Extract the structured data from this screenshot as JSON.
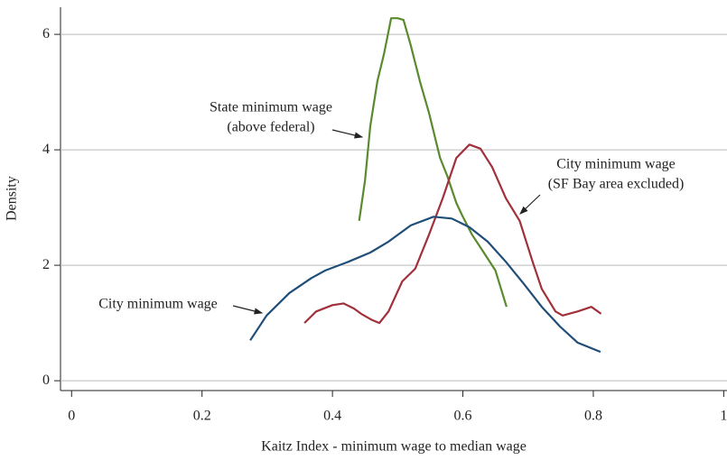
{
  "chart_data": {
    "type": "line",
    "x_label": "Kaitz Index - minimum wage to median wage",
    "y_label": "Density",
    "xlim": [
      -0.017,
      1.005
    ],
    "xticks": [
      0,
      0.2,
      0.4,
      0.6,
      0.8,
      1
    ],
    "ylim": [
      -0.17,
      6.47
    ],
    "yticks": [
      0,
      2,
      4,
      6
    ],
    "grid": true,
    "series": [
      {
        "label": [
          "State minimum wage",
          "(above federal)"
        ],
        "color": "#5a8a2e",
        "x": [
          0.441,
          0.45,
          0.458,
          0.469,
          0.479,
          0.49,
          0.5,
          0.509,
          0.52,
          0.534,
          0.548,
          0.565,
          0.576,
          0.59,
          0.6,
          0.614,
          0.632,
          0.65,
          0.667
        ],
        "values": [
          2.77,
          3.47,
          4.41,
          5.19,
          5.66,
          6.28,
          6.28,
          6.25,
          5.81,
          5.19,
          4.64,
          3.86,
          3.55,
          3.08,
          2.84,
          2.53,
          2.22,
          1.91,
          1.28
        ]
      },
      {
        "label": [
          "City minimum wage",
          "(SF Bay area excluded)"
        ],
        "color": "#a0303a",
        "x": [
          0.357,
          0.375,
          0.4,
          0.417,
          0.433,
          0.444,
          0.461,
          0.472,
          0.486,
          0.507,
          0.527,
          0.548,
          0.569,
          0.59,
          0.61,
          0.627,
          0.645,
          0.666,
          0.687,
          0.707,
          0.721,
          0.742,
          0.753,
          0.776,
          0.797,
          0.812
        ],
        "values": [
          1.0,
          1.2,
          1.31,
          1.34,
          1.25,
          1.16,
          1.05,
          1.0,
          1.2,
          1.72,
          1.94,
          2.53,
          3.16,
          3.86,
          4.09,
          4.02,
          3.7,
          3.16,
          2.77,
          2.06,
          1.59,
          1.2,
          1.13,
          1.2,
          1.28,
          1.16
        ]
      },
      {
        "label": [
          "City minimum wage"
        ],
        "color": "#1f4e79",
        "x": [
          0.274,
          0.299,
          0.334,
          0.368,
          0.389,
          0.424,
          0.458,
          0.486,
          0.52,
          0.555,
          0.583,
          0.61,
          0.638,
          0.666,
          0.694,
          0.721,
          0.749,
          0.776,
          0.811
        ],
        "values": [
          0.7,
          1.13,
          1.52,
          1.78,
          1.91,
          2.06,
          2.22,
          2.41,
          2.69,
          2.84,
          2.81,
          2.66,
          2.41,
          2.06,
          1.67,
          1.28,
          0.94,
          0.66,
          0.5
        ]
      }
    ]
  }
}
